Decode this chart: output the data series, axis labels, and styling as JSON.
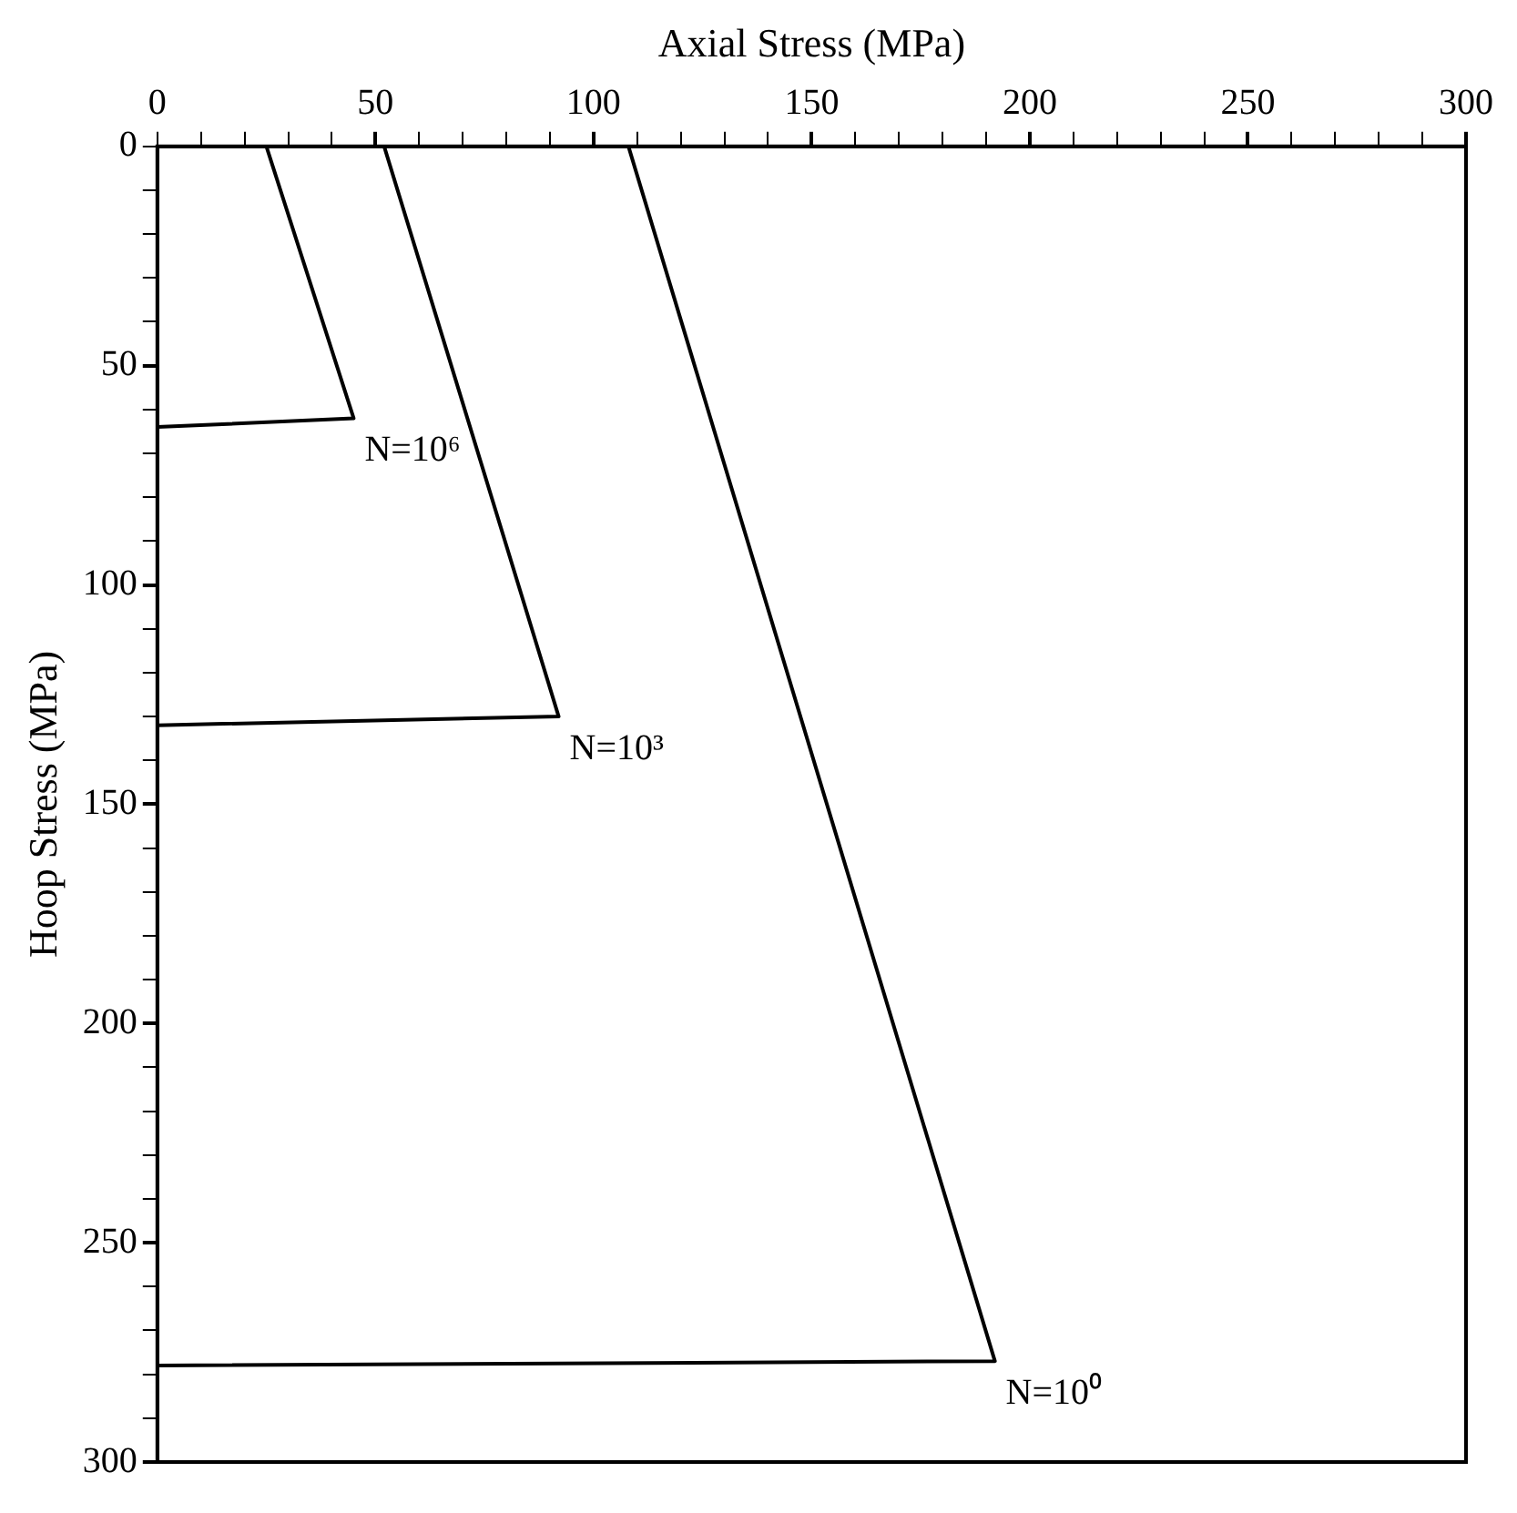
{
  "chart_data": {
    "type": "line",
    "xlabel": "Axial Stress (MPa)",
    "ylabel": "Hoop Stress (MPa)",
    "xlim": [
      0,
      300
    ],
    "ylim": [
      300,
      0
    ],
    "xticks": [
      0,
      {
        "value": 10,
        "label": null
      },
      {
        "value": 20,
        "label": null
      },
      {
        "value": 30,
        "label": null
      },
      {
        "value": 40,
        "label": null
      },
      50,
      {
        "value": 60,
        "label": null
      },
      {
        "value": 70,
        "label": null
      },
      {
        "value": 80,
        "label": null
      },
      {
        "value": 90,
        "label": null
      },
      100,
      {
        "value": 110,
        "label": null
      },
      {
        "value": 120,
        "label": null
      },
      {
        "value": 130,
        "label": null
      },
      {
        "value": 140,
        "label": null
      },
      150,
      {
        "value": 160,
        "label": null
      },
      {
        "value": 170,
        "label": null
      },
      {
        "value": 180,
        "label": null
      },
      {
        "value": 190,
        "label": null
      },
      200,
      {
        "value": 210,
        "label": null
      },
      {
        "value": 220,
        "label": null
      },
      {
        "value": 230,
        "label": null
      },
      {
        "value": 240,
        "label": null
      },
      250,
      {
        "value": 260,
        "label": null
      },
      {
        "value": 270,
        "label": null
      },
      {
        "value": 280,
        "label": null
      },
      {
        "value": 290,
        "label": null
      },
      300
    ],
    "yticks": [
      0,
      {
        "value": 10,
        "label": null
      },
      {
        "value": 20,
        "label": null
      },
      {
        "value": 30,
        "label": null
      },
      {
        "value": 40,
        "label": null
      },
      50,
      {
        "value": 60,
        "label": null
      },
      {
        "value": 70,
        "label": null
      },
      {
        "value": 80,
        "label": null
      },
      {
        "value": 90,
        "label": null
      },
      100,
      {
        "value": 110,
        "label": null
      },
      {
        "value": 120,
        "label": null
      },
      {
        "value": 130,
        "label": null
      },
      {
        "value": 140,
        "label": null
      },
      150,
      {
        "value": 160,
        "label": null
      },
      {
        "value": 170,
        "label": null
      },
      {
        "value": 180,
        "label": null
      },
      {
        "value": 190,
        "label": null
      },
      200,
      {
        "value": 210,
        "label": null
      },
      {
        "value": 220,
        "label": null
      },
      {
        "value": 230,
        "label": null
      },
      {
        "value": 240,
        "label": null
      },
      250,
      {
        "value": 260,
        "label": null
      },
      {
        "value": 270,
        "label": null
      },
      {
        "value": 280,
        "label": null
      },
      {
        "value": 290,
        "label": null
      },
      300
    ],
    "grid": false,
    "legend": false,
    "marker": "none",
    "line_style": "solid",
    "series": [
      {
        "name": "N=10⁰",
        "color": "#000000",
        "x": [
          108,
          192,
          0
        ],
        "values": [
          0,
          277,
          278
        ]
      },
      {
        "name": "N=10³",
        "color": "#000000",
        "x": [
          52,
          92,
          0
        ],
        "values": [
          0,
          130,
          132
        ]
      },
      {
        "name": "N=10⁶",
        "color": "#000000",
        "x": [
          25,
          45,
          0
        ],
        "values": [
          0,
          62,
          64
        ]
      }
    ]
  }
}
